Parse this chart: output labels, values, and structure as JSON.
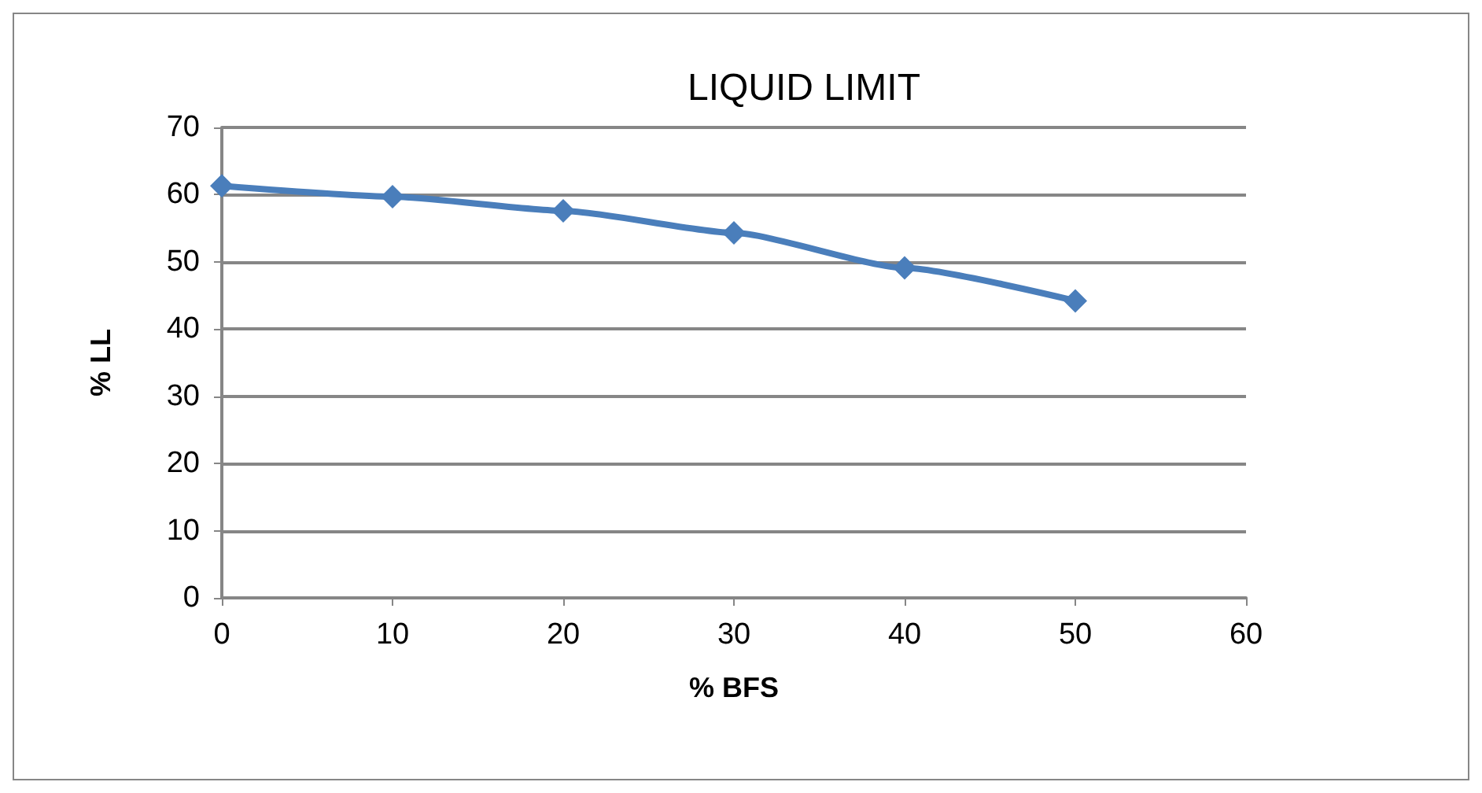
{
  "chart_data": {
    "type": "line",
    "title": "LIQUID LIMIT",
    "xlabel": "% BFS",
    "ylabel": "% LL",
    "x": [
      0,
      10,
      20,
      30,
      40,
      50
    ],
    "series": [
      {
        "color": "#4a7ebb",
        "values": [
          61.3,
          59.7,
          57.6,
          54.3,
          49.1,
          44.2
        ]
      }
    ],
    "xlim": [
      0,
      60
    ],
    "xticks": [
      0,
      10,
      20,
      30,
      40,
      50,
      60
    ],
    "ylim": [
      0,
      70
    ],
    "yticks": [
      0,
      10,
      20,
      30,
      40,
      50,
      60,
      70
    ],
    "grid": "y",
    "marker": "diamond",
    "line_style": "solid"
  }
}
